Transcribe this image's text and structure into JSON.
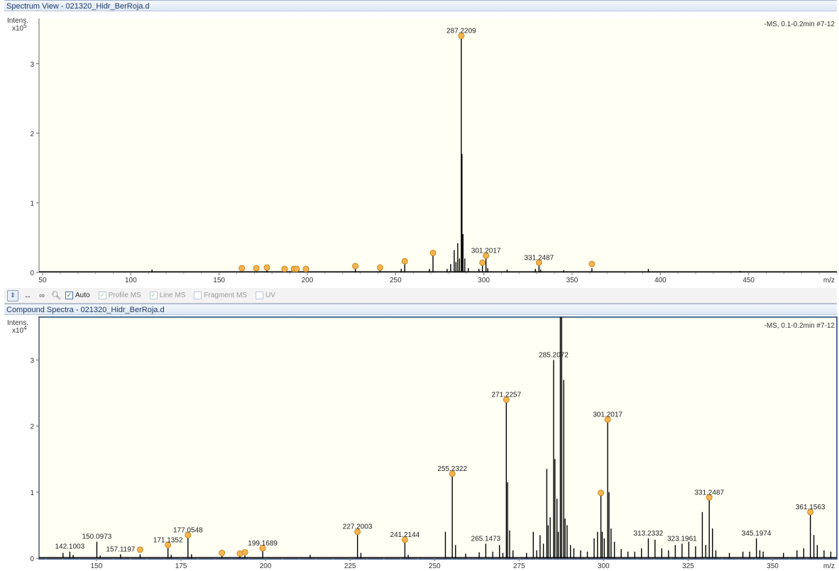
{
  "top_panel": {
    "title": "Spectrum View - 021320_Hidr_BerRoja.d",
    "y_label": "Intens.",
    "y_scale_base": "x10",
    "y_scale_exp": "5",
    "x_unit": "m/z",
    "header_info": "-MS, 0.1-0.2min #7-12"
  },
  "bottom_panel": {
    "title": "Compound Spectra - 021320_Hidr_BerRoja.d",
    "y_label": "Intens.",
    "y_scale_base": "x10",
    "y_scale_exp": "4",
    "x_unit": "m/z",
    "header_info": "-MS, 0.1-0.2min #7-12"
  },
  "toolbar": {
    "auto_label": "Auto",
    "profile_ms_label": "Profile MS",
    "line_ms_label": "Line MS",
    "fragment_ms_label": "Fragment MS",
    "uv_label": "UV"
  },
  "colors": {
    "plot_bg": "#fffff4",
    "peak": "#000000",
    "marker_fill": "#f5b351",
    "marker_stroke": "#c98a1e",
    "bottom_frame": "#1c3e74"
  },
  "chart_data": [
    {
      "type": "bar",
      "title": "Spectrum View - 021320_Hidr_BerRoja.d",
      "xlabel": "m/z",
      "ylabel": "Intens. x10^5",
      "xlim": [
        48,
        500
      ],
      "ylim": [
        0,
        3.65
      ],
      "x_ticks": [
        50,
        100,
        150,
        200,
        250,
        300,
        350,
        400,
        450
      ],
      "y_ticks": [
        0,
        1,
        2,
        3
      ],
      "peaks": [
        {
          "mz": 112.0,
          "y": 0.04
        },
        {
          "mz": 162.9,
          "y": 0.04
        },
        {
          "mz": 171.1,
          "y": 0.03
        },
        {
          "mz": 177.1,
          "y": 0.05
        },
        {
          "mz": 199.2,
          "y": 0.03
        },
        {
          "mz": 227.2,
          "y": 0.07
        },
        {
          "mz": 241.2,
          "y": 0.05
        },
        {
          "mz": 253.2,
          "y": 0.05
        },
        {
          "mz": 255.2,
          "y": 0.14
        },
        {
          "mz": 269.2,
          "y": 0.05
        },
        {
          "mz": 271.2,
          "y": 0.26
        },
        {
          "mz": 279.2,
          "y": 0.05
        },
        {
          "mz": 281.2,
          "y": 0.12
        },
        {
          "mz": 283.2,
          "y": 0.32
        },
        {
          "mz": 284.2,
          "y": 0.15
        },
        {
          "mz": 285.2,
          "y": 0.42
        },
        {
          "mz": 286.2,
          "y": 0.2
        },
        {
          "mz": 287.2209,
          "y": 3.4
        },
        {
          "mz": 287.6,
          "y": 1.7
        },
        {
          "mz": 288.2,
          "y": 0.55
        },
        {
          "mz": 289.2,
          "y": 0.2
        },
        {
          "mz": 291.2,
          "y": 0.06
        },
        {
          "mz": 297.2,
          "y": 0.05
        },
        {
          "mz": 299.2,
          "y": 0.12
        },
        {
          "mz": 301.2017,
          "y": 0.23
        },
        {
          "mz": 302.2,
          "y": 0.06
        },
        {
          "mz": 313.2,
          "y": 0.04
        },
        {
          "mz": 329.2,
          "y": 0.05
        },
        {
          "mz": 331.2487,
          "y": 0.13
        },
        {
          "mz": 332.2,
          "y": 0.04
        },
        {
          "mz": 345.2,
          "y": 0.03
        },
        {
          "mz": 361.2,
          "y": 0.06
        },
        {
          "mz": 393.2,
          "y": 0.05
        },
        {
          "mz": 445.1,
          "y": 0.02
        }
      ],
      "markers": [
        {
          "mz": 162.9,
          "y": 0.06
        },
        {
          "mz": 171.1,
          "y": 0.06
        },
        {
          "mz": 177.1,
          "y": 0.07
        },
        {
          "mz": 187.1,
          "y": 0.05
        },
        {
          "mz": 192.4,
          "y": 0.05
        },
        {
          "mz": 193.9,
          "y": 0.05
        },
        {
          "mz": 199.2,
          "y": 0.05
        },
        {
          "mz": 227.2,
          "y": 0.09
        },
        {
          "mz": 241.2,
          "y": 0.07
        },
        {
          "mz": 255.2,
          "y": 0.16
        },
        {
          "mz": 271.2,
          "y": 0.28
        },
        {
          "mz": 287.2209,
          "y": 3.4
        },
        {
          "mz": 299.2,
          "y": 0.14
        },
        {
          "mz": 301.2017,
          "y": 0.24
        },
        {
          "mz": 331.2487,
          "y": 0.14
        },
        {
          "mz": 361.2,
          "y": 0.12
        }
      ],
      "labels": [
        {
          "text": "287.2209",
          "mz": 287.2209,
          "y": 3.4
        },
        {
          "text": "301.2017",
          "mz": 301.2017,
          "y": 0.24
        },
        {
          "text": "331.2487",
          "mz": 331.2487,
          "y": 0.14
        }
      ]
    },
    {
      "type": "bar",
      "title": "Compound Spectra - 021320_Hidr_BerRoja.d",
      "xlabel": "m/z",
      "ylabel": "Intens. x10^4",
      "xlim": [
        133,
        369
      ],
      "ylim": [
        0,
        3.65
      ],
      "x_ticks": [
        150,
        175,
        200,
        225,
        250,
        275,
        300,
        325,
        350
      ],
      "y_ticks": [
        0,
        1,
        2,
        3
      ],
      "peaks": [
        {
          "mz": 140.1,
          "y": 0.08
        },
        {
          "mz": 142.1003,
          "y": 0.1
        },
        {
          "mz": 143.1,
          "y": 0.05
        },
        {
          "mz": 150.0973,
          "y": 0.25
        },
        {
          "mz": 151.1,
          "y": 0.04
        },
        {
          "mz": 157.1197,
          "y": 0.06
        },
        {
          "mz": 162.9,
          "y": 0.06
        },
        {
          "mz": 171.1352,
          "y": 0.2
        },
        {
          "mz": 172.1,
          "y": 0.05
        },
        {
          "mz": 177.0548,
          "y": 0.38
        },
        {
          "mz": 178.1,
          "y": 0.06
        },
        {
          "mz": 187.1,
          "y": 0.05
        },
        {
          "mz": 192.4,
          "y": 0.04
        },
        {
          "mz": 193.9,
          "y": 0.04
        },
        {
          "mz": 199.1689,
          "y": 0.16
        },
        {
          "mz": 213.2,
          "y": 0.05
        },
        {
          "mz": 227.2003,
          "y": 0.42
        },
        {
          "mz": 228.2,
          "y": 0.08
        },
        {
          "mz": 241.2144,
          "y": 0.3
        },
        {
          "mz": 242.2,
          "y": 0.05
        },
        {
          "mz": 253.2,
          "y": 0.4
        },
        {
          "mz": 255.2322,
          "y": 1.28
        },
        {
          "mz": 256.2,
          "y": 0.2
        },
        {
          "mz": 259.2,
          "y": 0.07
        },
        {
          "mz": 263.2,
          "y": 0.09
        },
        {
          "mz": 265.1473,
          "y": 0.22
        },
        {
          "mz": 267.2,
          "y": 0.1
        },
        {
          "mz": 269.2,
          "y": 0.2
        },
        {
          "mz": 270.2,
          "y": 0.08
        },
        {
          "mz": 271.2257,
          "y": 2.4
        },
        {
          "mz": 271.6,
          "y": 1.15
        },
        {
          "mz": 272.2,
          "y": 0.42
        },
        {
          "mz": 273.2,
          "y": 0.12
        },
        {
          "mz": 277.2,
          "y": 0.08
        },
        {
          "mz": 279.2,
          "y": 0.4
        },
        {
          "mz": 280.2,
          "y": 0.12
        },
        {
          "mz": 281.2,
          "y": 0.35
        },
        {
          "mz": 282.2,
          "y": 0.22
        },
        {
          "mz": 283.2,
          "y": 1.35
        },
        {
          "mz": 283.6,
          "y": 0.5
        },
        {
          "mz": 284.2,
          "y": 0.62
        },
        {
          "mz": 285.2072,
          "y": 3.0
        },
        {
          "mz": 285.6,
          "y": 1.5
        },
        {
          "mz": 286.2,
          "y": 0.9
        },
        {
          "mz": 286.6,
          "y": 0.4
        },
        {
          "mz": 287.2,
          "y": 3.7
        },
        {
          "mz": 287.6,
          "y": 3.7
        },
        {
          "mz": 288.2,
          "y": 2.7
        },
        {
          "mz": 288.6,
          "y": 0.6
        },
        {
          "mz": 289.2,
          "y": 0.5
        },
        {
          "mz": 290.2,
          "y": 0.2
        },
        {
          "mz": 291.2,
          "y": 0.15
        },
        {
          "mz": 293.2,
          "y": 0.12
        },
        {
          "mz": 295.2,
          "y": 0.1
        },
        {
          "mz": 297.2,
          "y": 0.3
        },
        {
          "mz": 298.2,
          "y": 0.4
        },
        {
          "mz": 299.2,
          "y": 0.95
        },
        {
          "mz": 299.6,
          "y": 0.4
        },
        {
          "mz": 300.2,
          "y": 0.3
        },
        {
          "mz": 301.2017,
          "y": 2.1
        },
        {
          "mz": 301.6,
          "y": 1.0
        },
        {
          "mz": 302.2,
          "y": 0.45
        },
        {
          "mz": 303.2,
          "y": 0.25
        },
        {
          "mz": 305.2,
          "y": 0.14
        },
        {
          "mz": 307.2,
          "y": 0.1
        },
        {
          "mz": 309.2,
          "y": 0.1
        },
        {
          "mz": 311.2,
          "y": 0.15
        },
        {
          "mz": 313.2332,
          "y": 0.3
        },
        {
          "mz": 315.2,
          "y": 0.28
        },
        {
          "mz": 317.2,
          "y": 0.15
        },
        {
          "mz": 319.2,
          "y": 0.12
        },
        {
          "mz": 321.2,
          "y": 0.2
        },
        {
          "mz": 323.1961,
          "y": 0.22
        },
        {
          "mz": 325.2,
          "y": 0.25
        },
        {
          "mz": 327.2,
          "y": 0.18
        },
        {
          "mz": 329.2,
          "y": 0.7
        },
        {
          "mz": 330.2,
          "y": 0.2
        },
        {
          "mz": 331.2487,
          "y": 0.92
        },
        {
          "mz": 332.2,
          "y": 0.45
        },
        {
          "mz": 333.2,
          "y": 0.12
        },
        {
          "mz": 337.2,
          "y": 0.08
        },
        {
          "mz": 341.2,
          "y": 0.1
        },
        {
          "mz": 343.2,
          "y": 0.1
        },
        {
          "mz": 345.1974,
          "y": 0.3
        },
        {
          "mz": 346.2,
          "y": 0.12
        },
        {
          "mz": 347.2,
          "y": 0.1
        },
        {
          "mz": 353.2,
          "y": 0.08
        },
        {
          "mz": 357.2,
          "y": 0.12
        },
        {
          "mz": 359.2,
          "y": 0.15
        },
        {
          "mz": 361.1563,
          "y": 0.7
        },
        {
          "mz": 362.2,
          "y": 0.35
        },
        {
          "mz": 363.2,
          "y": 0.2
        },
        {
          "mz": 365.2,
          "y": 0.12
        },
        {
          "mz": 367.2,
          "y": 0.1
        }
      ],
      "markers": [
        {
          "mz": 162.9,
          "y": 0.13
        },
        {
          "mz": 171.1352,
          "y": 0.2
        },
        {
          "mz": 177.0548,
          "y": 0.35
        },
        {
          "mz": 187.1,
          "y": 0.08
        },
        {
          "mz": 192.4,
          "y": 0.07
        },
        {
          "mz": 193.9,
          "y": 0.09
        },
        {
          "mz": 199.1689,
          "y": 0.15
        },
        {
          "mz": 227.2003,
          "y": 0.4
        },
        {
          "mz": 241.2144,
          "y": 0.28
        },
        {
          "mz": 255.2322,
          "y": 1.28
        },
        {
          "mz": 271.2257,
          "y": 2.4
        },
        {
          "mz": 299.2,
          "y": 0.99
        },
        {
          "mz": 301.2017,
          "y": 2.1
        },
        {
          "mz": 331.2487,
          "y": 0.92
        },
        {
          "mz": 361.1563,
          "y": 0.7
        }
      ],
      "labels": [
        {
          "text": "142.1003",
          "mz": 142.1003,
          "y": 0.1
        },
        {
          "text": "150.0973",
          "mz": 150.0973,
          "y": 0.25
        },
        {
          "text": "157.1197",
          "mz": 157.1197,
          "y": 0.06
        },
        {
          "text": "171.1352",
          "mz": 171.1352,
          "y": 0.2
        },
        {
          "text": "177.0548",
          "mz": 177.0548,
          "y": 0.35
        },
        {
          "text": "199.1689",
          "mz": 199.1689,
          "y": 0.15
        },
        {
          "text": "227.2003",
          "mz": 227.2003,
          "y": 0.4
        },
        {
          "text": "241.2144",
          "mz": 241.2144,
          "y": 0.28
        },
        {
          "text": "255.2322",
          "mz": 255.2322,
          "y": 1.28
        },
        {
          "text": "265.1473",
          "mz": 265.1473,
          "y": 0.22
        },
        {
          "text": "271.2257",
          "mz": 271.2257,
          "y": 2.4
        },
        {
          "text": "285.2072",
          "mz": 285.2072,
          "y": 3.0
        },
        {
          "text": "301.2017",
          "mz": 301.2017,
          "y": 2.1
        },
        {
          "text": "313.2332",
          "mz": 313.2332,
          "y": 0.3
        },
        {
          "text": "323.1961",
          "mz": 323.1961,
          "y": 0.22
        },
        {
          "text": "331.2487",
          "mz": 331.2487,
          "y": 0.92
        },
        {
          "text": "345.1974",
          "mz": 345.1974,
          "y": 0.3
        },
        {
          "text": "361.1563",
          "mz": 361.1563,
          "y": 0.7
        }
      ]
    }
  ]
}
